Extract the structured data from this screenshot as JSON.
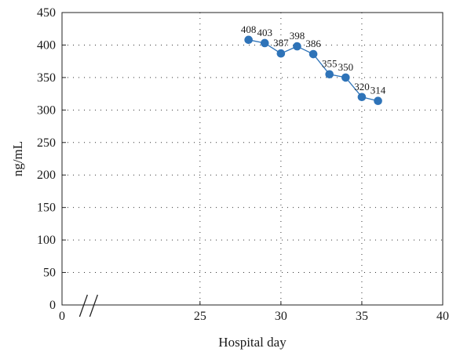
{
  "chart_data": {
    "type": "line",
    "title": "",
    "xlabel": "Hospital day",
    "ylabel": "ng/mL",
    "xlim": [
      0,
      40
    ],
    "ylim": [
      0,
      450
    ],
    "x_axis_break": true,
    "x_ticks": [
      0,
      25,
      30,
      35,
      40
    ],
    "y_ticks": [
      0,
      50,
      100,
      150,
      200,
      250,
      300,
      350,
      400,
      450
    ],
    "grid": "dotted",
    "series": [
      {
        "color": "#2e73b8",
        "x": [
          28,
          29,
          30,
          31,
          32,
          33,
          34,
          35,
          36
        ],
        "y": [
          408,
          403,
          387,
          398,
          386,
          355,
          350,
          320,
          314
        ],
        "labels": [
          "408",
          "403",
          "387",
          "398",
          "386",
          "355",
          "350",
          "320",
          "314"
        ]
      }
    ]
  }
}
